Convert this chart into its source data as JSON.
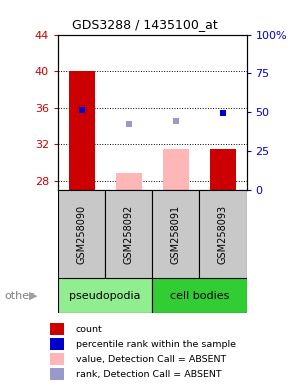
{
  "title": "GDS3288 / 1435100_at",
  "samples": [
    "GSM258090",
    "GSM258092",
    "GSM258091",
    "GSM258093"
  ],
  "group_colors": {
    "pseudopodia": "#90EE90",
    "cell bodies": "#32CD32"
  },
  "ylim_left": [
    27,
    44
  ],
  "ylim_right": [
    0,
    100
  ],
  "yticks_left": [
    28,
    32,
    36,
    40,
    44
  ],
  "yticks_right": [
    0,
    25,
    50,
    75,
    100
  ],
  "ytick_labels_right": [
    "0",
    "25",
    "50",
    "75",
    "100%"
  ],
  "bar_values": [
    40.0,
    28.9,
    31.5,
    31.5
  ],
  "bar_colors": [
    "#CC0000",
    "#FFB6B6",
    "#FFB6B6",
    "#CC0000"
  ],
  "dot_values": [
    35.8,
    34.2,
    34.5,
    35.4
  ],
  "dot_colors": [
    "#0000CC",
    "#9999CC",
    "#9999CC",
    "#0000CC"
  ],
  "dot_is_absent": [
    false,
    true,
    true,
    false
  ],
  "bar_width": 0.55,
  "label_color_left": "#CC0000",
  "label_color_right": "#0000CC",
  "legend_items": [
    {
      "label": "count",
      "color": "#CC0000"
    },
    {
      "label": "percentile rank within the sample",
      "color": "#0000CC"
    },
    {
      "label": "value, Detection Call = ABSENT",
      "color": "#FFB6B6"
    },
    {
      "label": "rank, Detection Call = ABSENT",
      "color": "#9999CC"
    }
  ]
}
